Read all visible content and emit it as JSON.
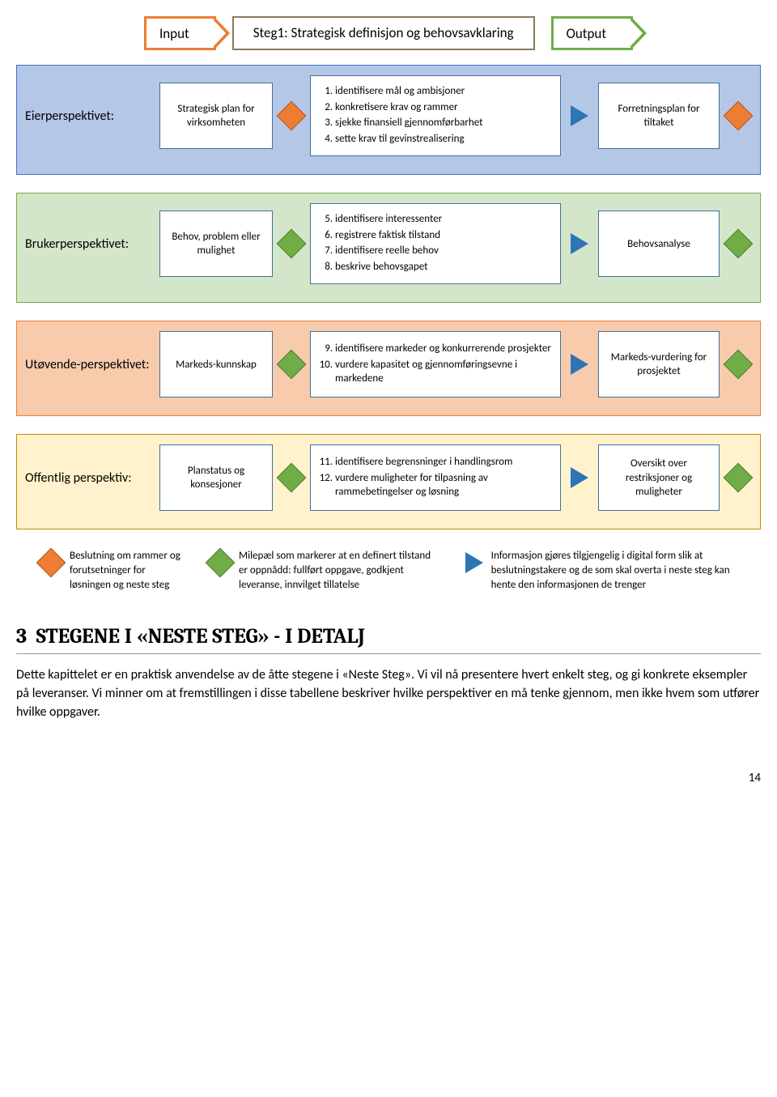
{
  "header": {
    "input_label": "Input",
    "title": "Steg1: Strategisk definisjon og behovsavklaring",
    "output_label": "Output"
  },
  "colors": {
    "orange": "#ed7d31",
    "green_arrow": "#70ad47",
    "row_blue_bg": "#b4c7e7",
    "row_green_bg": "#d4e6c9",
    "row_orange_bg": "#f8cbad",
    "row_yellow_bg": "#fff2cc",
    "box_border": "#41719c",
    "title_border": "#8a7a55",
    "triangle_blue": "#2e75b6",
    "diamond_green": "#70ad47",
    "diamond_orange": "#ed7d31"
  },
  "rows": [
    {
      "id": "eier",
      "bg": "blue",
      "label": "Eierperspektivet:",
      "input_box": "Strategisk plan for virksomheten",
      "shape1": "orange",
      "steps_start": 1,
      "steps": [
        "identifisere mål og ambisjoner",
        "konkretisere krav og rammer",
        "sjekke finansiell gjennomførbarhet",
        "sette krav til gevinstrealisering"
      ],
      "shape2": "triangle",
      "output_box": "Forretningsplan for tiltaket",
      "shape3": "orange"
    },
    {
      "id": "bruker",
      "bg": "green",
      "label": "Brukerperspektivet:",
      "input_box": "Behov, problem eller mulighet",
      "shape1": "green",
      "steps_start": 5,
      "steps": [
        "identifisere interessenter",
        "registrere faktisk tilstand",
        "identifisere reelle behov",
        "beskrive behovsgapet"
      ],
      "shape2": "triangle",
      "output_box": "Behovsanalyse",
      "shape3": "green"
    },
    {
      "id": "utovende",
      "bg": "orange",
      "label": "Utøvende-perspektivet:",
      "input_box": "Markeds-kunnskap",
      "shape1": "green",
      "steps_start": 9,
      "steps": [
        "identifisere markeder og konkurrerende prosjekter",
        "vurdere kapasitet og gjennomføringsevne i markedene"
      ],
      "shape2": "triangle",
      "output_box": "Markeds-vurdering for prosjektet",
      "shape3": "green"
    },
    {
      "id": "offentlig",
      "bg": "yellow",
      "label": "Offentlig perspektiv:",
      "input_box": "Planstatus og konsesjoner",
      "shape1": "green",
      "steps_start": 11,
      "steps": [
        "identifisere begrensninger i handlingsrom",
        "vurdere muligheter for tilpasning av rammebetingelser og løsning"
      ],
      "shape2": "triangle",
      "output_box": "Oversikt over restriksjoner og muligheter",
      "shape3": "green"
    }
  ],
  "legend": [
    {
      "shape": "orange",
      "text": "Beslutning om rammer og forutsetninger for løsningen og neste steg"
    },
    {
      "shape": "green",
      "text": "Milepæl som markerer at en definert tilstand er oppnådd: fullført oppgave, godkjent leveranse, innvilget tillatelse"
    },
    {
      "shape": "triangle",
      "text": "Informasjon gjøres tilgjengelig i digital form slik at beslutningstakere og de som skal overta i neste steg kan hente den informasjonen de trenger"
    }
  ],
  "section": {
    "number": "3",
    "title": "STEGENE I «NESTE STEG»  - I DETALJ",
    "body": "Dette kapittelet er en praktisk anvendelse av de åtte stegene i «Neste Steg». Vi vil nå presentere hvert enkelt steg, og gi konkrete eksempler på leveranser. Vi minner om at fremstillingen i disse tabellene beskriver hvilke perspektiver en må tenke gjennom, men ikke hvem som utfører hvilke oppgaver."
  },
  "page_number": "14"
}
